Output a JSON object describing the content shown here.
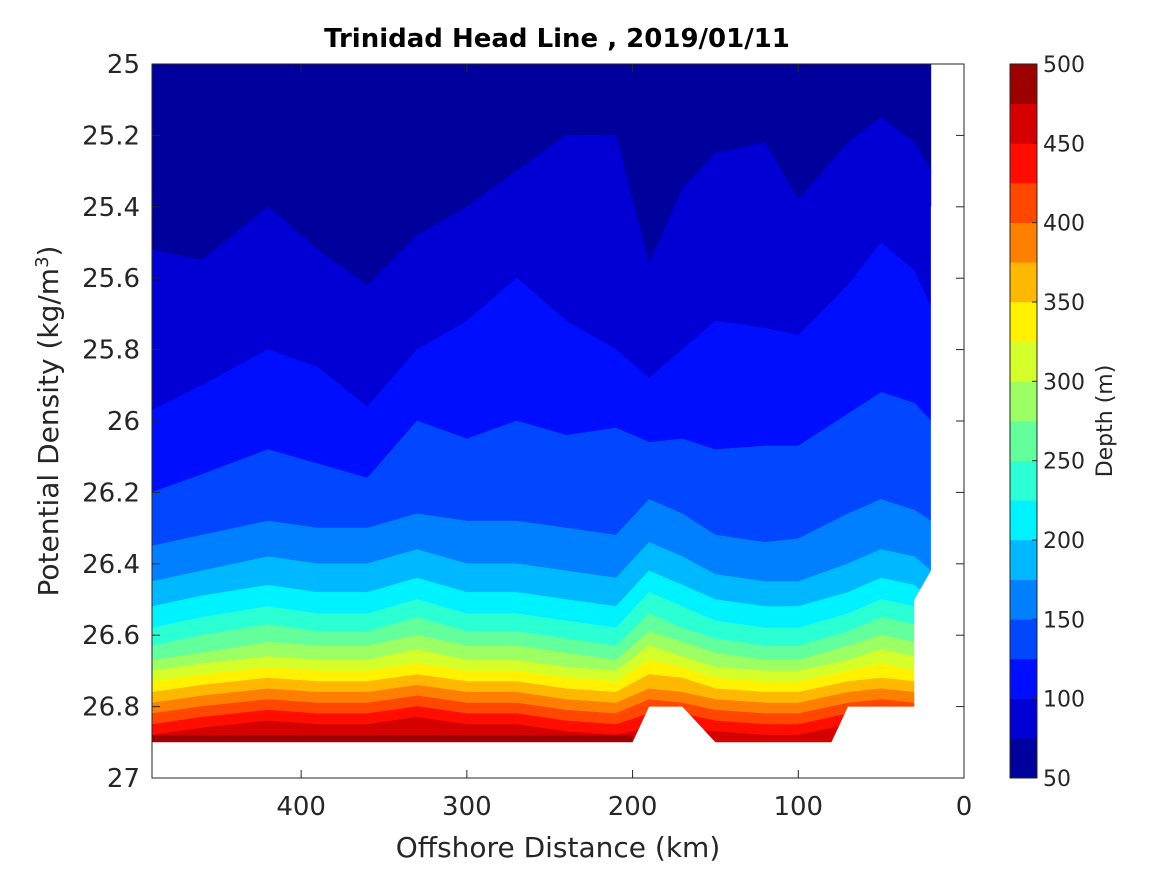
{
  "chart_data": {
    "type": "contourf",
    "title": "Trinidad Head Line , 2019/01/11",
    "xlabel": "Offshore Distance (km)",
    "ylabel_main": "Potential Density (kg/m",
    "ylabel_sup": "3",
    "ylabel_tail": ")",
    "x_reversed": true,
    "y_reversed": true,
    "xlim": [
      490,
      0
    ],
    "ylim": [
      25,
      27
    ],
    "xticks": [
      400,
      300,
      200,
      100,
      0
    ],
    "yticks": [
      25,
      25.2,
      25.4,
      25.6,
      25.8,
      26,
      26.2,
      26.4,
      26.6,
      26.8,
      27
    ],
    "colorbar": {
      "label": "Depth (m)",
      "range": [
        50,
        500
      ],
      "step": 25,
      "ticks": [
        500,
        450,
        400,
        350,
        300,
        250,
        200,
        150,
        100,
        50
      ],
      "colormap": "jet"
    },
    "data_extent": {
      "x_offshore_max": 490,
      "x_nearshore_min": 10,
      "bottom_density": 26.9
    },
    "isopycnal_depth_sections": {
      "distance_km": [
        490,
        460,
        420,
        390,
        360,
        330,
        300,
        270,
        240,
        210,
        190,
        170,
        150,
        120,
        100,
        70,
        50,
        30,
        20
      ],
      "depth_contours": [
        {
          "level": 75,
          "density": [
            25.52,
            25.55,
            25.4,
            25.52,
            25.62,
            25.48,
            25.4,
            25.3,
            25.2,
            25.2,
            25.56,
            25.35,
            25.25,
            25.22,
            25.38,
            25.22,
            25.15,
            25.22,
            25.3
          ]
        },
        {
          "level": 100,
          "density": [
            25.97,
            25.9,
            25.8,
            25.85,
            25.96,
            25.8,
            25.72,
            25.6,
            25.72,
            25.8,
            25.88,
            25.8,
            25.72,
            25.74,
            25.76,
            25.62,
            25.5,
            25.58,
            25.68
          ]
        },
        {
          "level": 125,
          "density": [
            26.2,
            26.15,
            26.08,
            26.12,
            26.16,
            26.0,
            26.05,
            26.0,
            26.04,
            26.02,
            26.06,
            26.05,
            26.08,
            26.07,
            26.07,
            25.98,
            25.92,
            25.95,
            26.0
          ]
        },
        {
          "level": 150,
          "density": [
            26.35,
            26.32,
            26.28,
            26.3,
            26.3,
            26.26,
            26.28,
            26.28,
            26.3,
            26.32,
            26.22,
            26.26,
            26.32,
            26.34,
            26.33,
            26.26,
            26.22,
            26.25,
            26.28
          ]
        },
        {
          "level": 175,
          "density": [
            26.45,
            26.42,
            26.38,
            26.4,
            26.4,
            26.36,
            26.4,
            26.4,
            26.42,
            26.44,
            26.34,
            26.38,
            26.43,
            26.45,
            26.45,
            26.4,
            26.36,
            26.38,
            26.42
          ]
        },
        {
          "level": 200,
          "density": [
            26.52,
            26.49,
            26.46,
            26.48,
            26.48,
            26.44,
            26.48,
            26.48,
            26.5,
            26.52,
            26.42,
            26.46,
            26.5,
            26.52,
            26.52,
            26.48,
            26.44,
            26.46,
            26.5
          ]
        },
        {
          "level": 225,
          "density": [
            26.58,
            26.55,
            26.52,
            26.54,
            26.54,
            26.5,
            26.54,
            26.54,
            26.56,
            26.58,
            26.48,
            26.52,
            26.56,
            26.58,
            26.58,
            26.54,
            26.5,
            26.52,
            26.56
          ]
        },
        {
          "level": 250,
          "density": [
            26.63,
            26.6,
            26.57,
            26.59,
            26.59,
            26.55,
            26.59,
            26.59,
            26.61,
            26.63,
            26.54,
            26.58,
            26.61,
            26.63,
            26.63,
            26.59,
            26.55,
            26.57,
            26.61
          ]
        },
        {
          "level": 275,
          "density": [
            26.67,
            26.65,
            26.62,
            26.63,
            26.63,
            26.6,
            26.63,
            26.63,
            26.65,
            26.67,
            26.59,
            26.62,
            26.65,
            26.67,
            26.67,
            26.63,
            26.6,
            26.62,
            26.65
          ]
        },
        {
          "level": 300,
          "density": [
            26.7,
            26.68,
            26.66,
            26.67,
            26.67,
            26.64,
            26.67,
            26.67,
            26.69,
            26.7,
            26.63,
            26.66,
            26.69,
            26.7,
            26.7,
            26.67,
            26.64,
            26.66,
            26.69
          ]
        },
        {
          "level": 325,
          "density": [
            26.73,
            26.71,
            26.69,
            26.7,
            26.7,
            26.68,
            26.7,
            26.7,
            26.72,
            26.73,
            26.67,
            26.69,
            26.72,
            26.73,
            26.73,
            26.7,
            26.68,
            26.7,
            26.72
          ]
        },
        {
          "level": 350,
          "density": [
            26.76,
            26.74,
            26.72,
            26.73,
            26.73,
            26.71,
            26.73,
            26.73,
            26.75,
            26.76,
            26.71,
            26.72,
            26.75,
            26.76,
            26.76,
            26.73,
            26.72,
            26.73,
            26.75
          ]
        },
        {
          "level": 375,
          "density": [
            26.79,
            26.77,
            26.75,
            26.76,
            26.76,
            26.74,
            26.76,
            26.76,
            26.78,
            26.79,
            26.75,
            26.76,
            26.78,
            26.79,
            26.79,
            26.76,
            26.75,
            26.76,
            26.78
          ]
        },
        {
          "level": 400,
          "density": [
            26.82,
            26.8,
            26.78,
            26.79,
            26.79,
            26.77,
            26.79,
            26.79,
            26.81,
            26.82,
            26.78,
            26.79,
            26.81,
            26.82,
            26.82,
            26.79,
            26.78,
            26.79,
            26.81
          ]
        },
        {
          "level": 425,
          "density": [
            26.85,
            26.83,
            26.81,
            26.82,
            26.82,
            26.8,
            26.82,
            26.82,
            26.84,
            26.85,
            26.82,
            26.82,
            26.84,
            26.85,
            26.85,
            26.82,
            26.81,
            26.82,
            26.84
          ]
        },
        {
          "level": 450,
          "density": [
            26.88,
            26.86,
            26.84,
            26.85,
            26.85,
            26.83,
            26.85,
            26.85,
            26.87,
            26.88,
            26.86,
            26.86,
            26.87,
            26.88,
            26.88,
            26.85,
            26.84,
            26.85,
            26.87
          ]
        }
      ]
    }
  }
}
